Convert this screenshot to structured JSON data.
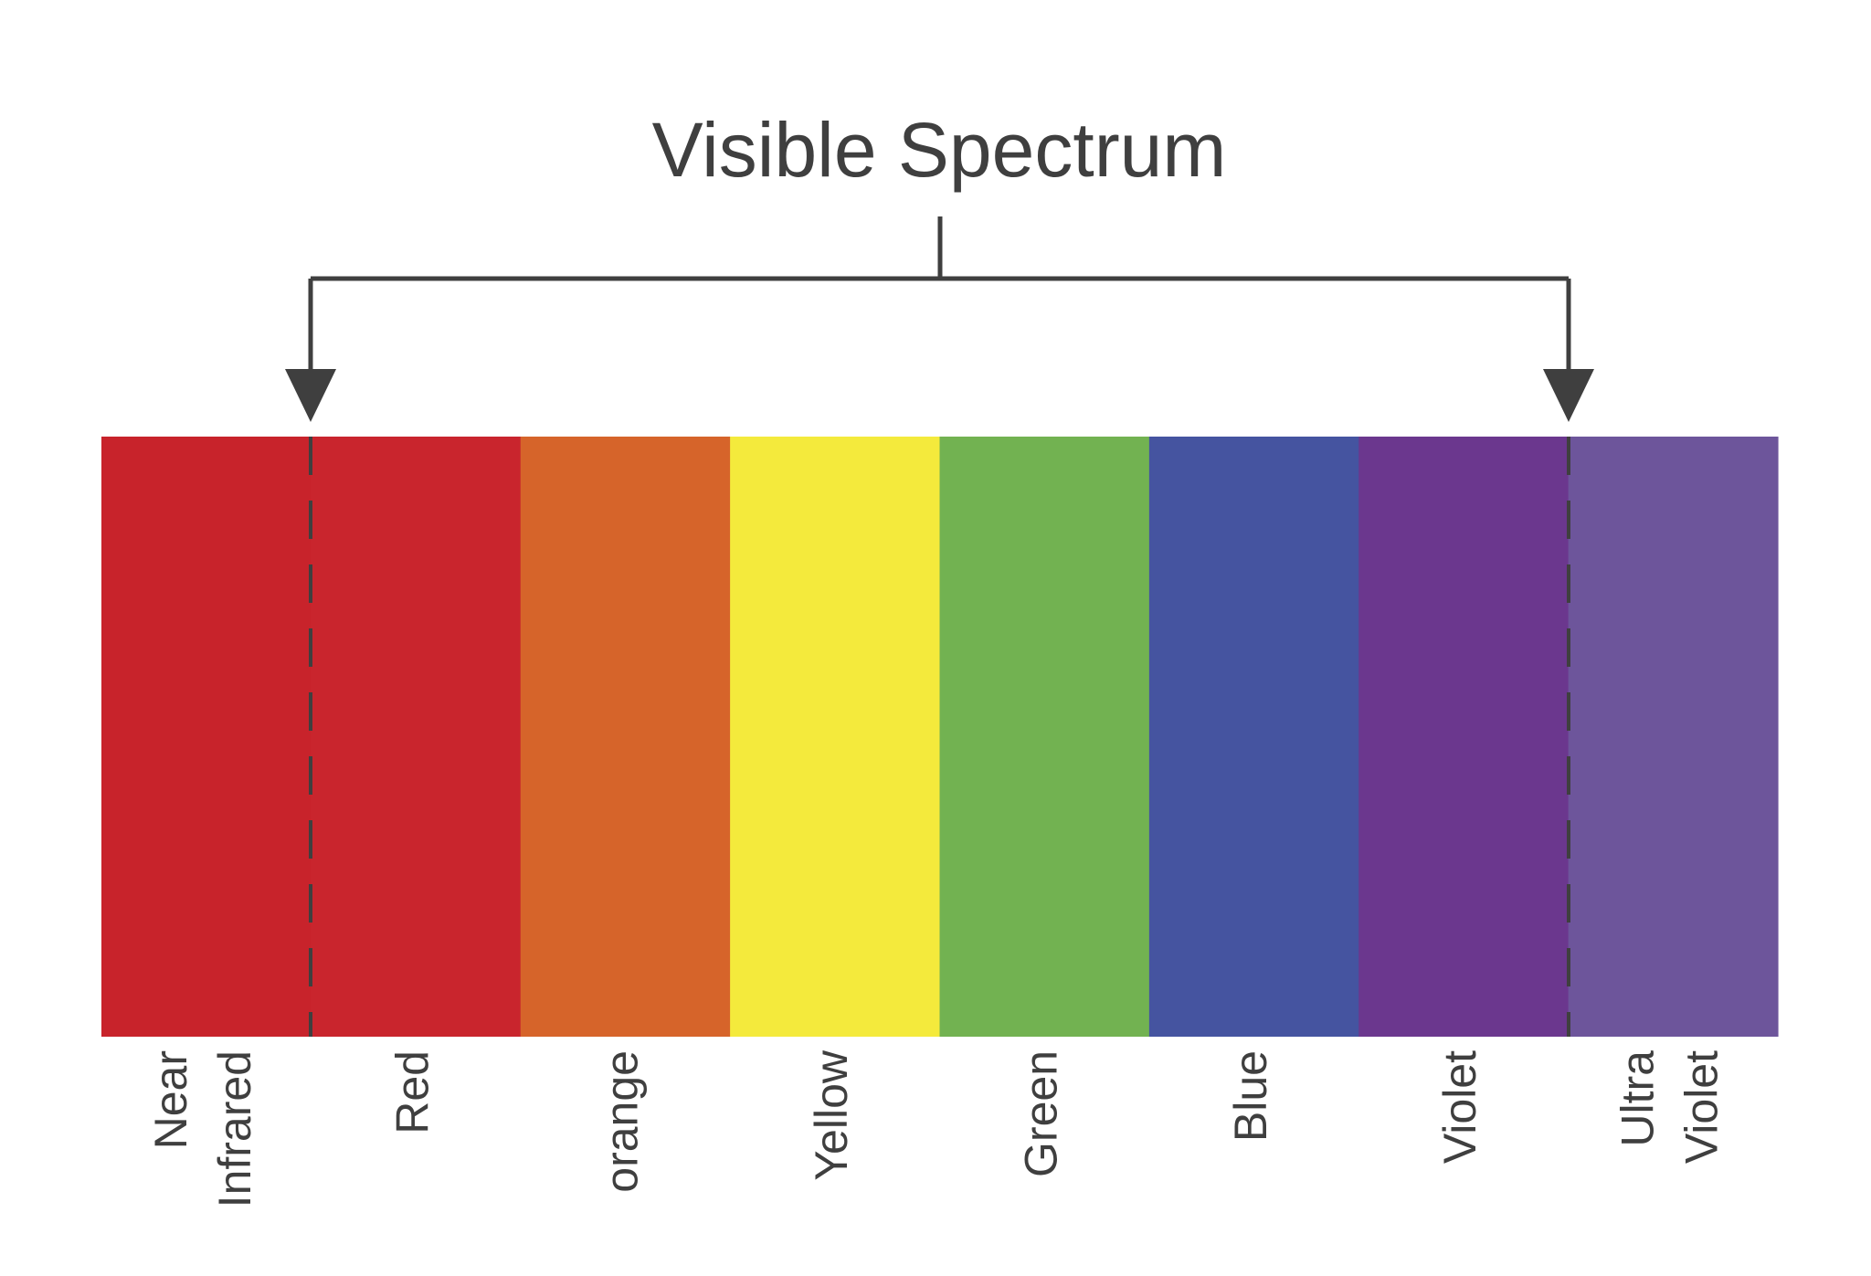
{
  "title": "Visible Spectrum",
  "ink_color": "#3f3f3f",
  "bands": [
    {
      "label_lines": [
        "Near",
        "Infrared"
      ],
      "color": "#c8232b"
    },
    {
      "label_lines": [
        "Red"
      ],
      "color": "#c9252d"
    },
    {
      "label_lines": [
        "orange"
      ],
      "color": "#d6642a"
    },
    {
      "label_lines": [
        "Yellow"
      ],
      "color": "#f4ea3c"
    },
    {
      "label_lines": [
        "Green"
      ],
      "color": "#72b251"
    },
    {
      "label_lines": [
        "Blue"
      ],
      "color": "#4554a0"
    },
    {
      "label_lines": [
        "Violet"
      ],
      "color": "#6b378e"
    },
    {
      "label_lines": [
        "Ultra",
        "Violet"
      ],
      "color": "#6d559b"
    }
  ],
  "bracket_icon": "down-arrow-icon"
}
